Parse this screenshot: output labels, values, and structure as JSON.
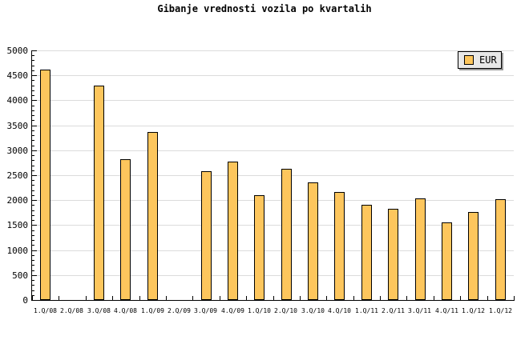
{
  "title": "Gibanje vrednosti vozila po kvartalih",
  "legend": {
    "label": "EUR"
  },
  "colors": {
    "background": "#ffffff",
    "bar_fill": "#fdc65d",
    "bar_border": "#000000",
    "grid": "#dcdcdc",
    "axis": "#000000",
    "legend_bg": "#e8e8e8",
    "legend_shadow": "#999999"
  },
  "chart_data": {
    "type": "bar",
    "title": "Gibanje vrednosti vozila po kvartalih",
    "series_name": "EUR",
    "categories": [
      "1.Q/08",
      "2.Q/08",
      "3.Q/08",
      "4.Q/08",
      "1.Q/09",
      "2.Q/09",
      "3.Q/09",
      "4.Q/09",
      "1.Q/10",
      "2.Q/10",
      "3.Q/10",
      "4.Q/10",
      "1.Q/11",
      "2.Q/11",
      "3.Q/11",
      "4.Q/11",
      "1.Q/12",
      "1.Q/12"
    ],
    "values": [
      4620,
      null,
      4290,
      2820,
      3360,
      null,
      2580,
      2770,
      2100,
      2630,
      2360,
      2160,
      1900,
      1820,
      2030,
      1560,
      1770,
      2020
    ],
    "xlabel": "",
    "ylabel": "",
    "ylim": [
      0,
      5000
    ],
    "y_major_step": 500,
    "y_minor_step": 100,
    "y_tick_labels": [
      "0",
      "500",
      "1000",
      "1500",
      "2000",
      "2500",
      "3000",
      "3500",
      "4000",
      "4500",
      "5000"
    ],
    "grid": true,
    "legend_position": "top-right"
  }
}
